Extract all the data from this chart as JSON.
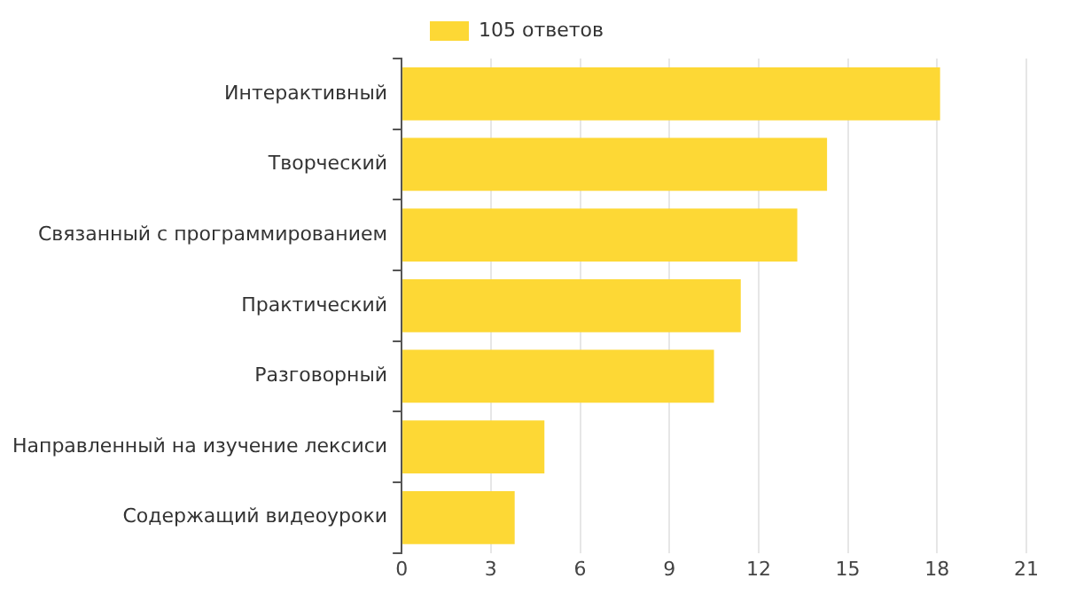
{
  "chart_data": {
    "type": "bar",
    "orientation": "horizontal",
    "categories": [
      "Интерактивный",
      "Творческий",
      "Связанный с программированием",
      "Практический",
      "Разговорный",
      "Направленный на изучение лексиси",
      "Содержащий видеоуроки"
    ],
    "series": [
      {
        "name": "105 ответов",
        "color": "#fdd835",
        "values": [
          18.1,
          14.3,
          13.3,
          11.4,
          10.5,
          4.8,
          3.8
        ]
      }
    ],
    "xlim": [
      0,
      21
    ],
    "xticks": [
      0,
      3,
      6,
      9,
      12,
      15,
      18,
      21
    ],
    "grid": "x",
    "legend": "top"
  }
}
